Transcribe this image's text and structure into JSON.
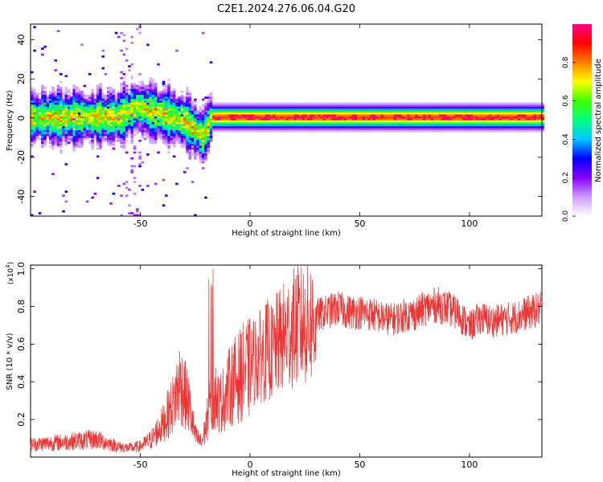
{
  "title": "C2E1.2024.276.06.04.G20",
  "chart_data": [
    {
      "type": "heatmap",
      "xlabel": "Height of straight line (km)",
      "ylabel": "Frequency (Hz)",
      "xlim": [
        -100,
        133
      ],
      "ylim": [
        -50,
        48
      ],
      "xticks": [
        -50,
        0,
        50,
        100
      ],
      "yticks": [
        -40,
        -20,
        0,
        20,
        40
      ],
      "colorbar": {
        "label": "Normalized spectral amplitude",
        "range": [
          0,
          1
        ],
        "ticks": [
          "0.0",
          "0.2",
          "0.4",
          "0.6",
          "0.8"
        ],
        "colors": [
          "#ffffff",
          "#cc99ff",
          "#8800ff",
          "#0000ff",
          "#00c8ff",
          "#00ff80",
          "#40ff00",
          "#ffff00",
          "#ff8000",
          "#ff0000",
          "#ff0088"
        ]
      },
      "description_features": {
        "central_frequency_hz": [
          [
            -100,
            0
          ],
          [
            -60,
            0
          ],
          [
            -52,
            5
          ],
          [
            -30,
            -2
          ],
          [
            -22,
            -10
          ],
          [
            -18,
            0
          ],
          [
            133,
            0
          ]
        ],
        "strong_band_x_range": [
          -18,
          133
        ]
      }
    },
    {
      "type": "line",
      "xlabel": "Height of straight line (km)",
      "ylabel": "SNR (10 * v/v)",
      "yscale_label": "(x10",
      "yscale_exponent": "4",
      "xlim": [
        -100,
        133
      ],
      "ylim": [
        0,
        1.02
      ],
      "xticks": [
        -50,
        0,
        50,
        100
      ],
      "yticks": [
        0.2,
        0.4,
        0.6,
        0.8,
        1.0
      ],
      "series": [
        {
          "color": "#ee3333",
          "x": [
            -100,
            -90,
            -80,
            -70,
            -60,
            -55,
            -50,
            -45,
            -40,
            -35,
            -32,
            -28,
            -25,
            -22,
            -20,
            -18,
            -16,
            -14,
            -12,
            -10,
            -8,
            -5,
            -3,
            0,
            3,
            5,
            8,
            10,
            13,
            15,
            18,
            20,
            25,
            30,
            35,
            40,
            45,
            50,
            55,
            60,
            65,
            70,
            75,
            80,
            85,
            90,
            95,
            100,
            105,
            110,
            115,
            120,
            125,
            133
          ],
          "values": [
            0.07,
            0.08,
            0.09,
            0.1,
            0.06,
            0.05,
            0.06,
            0.1,
            0.18,
            0.3,
            0.42,
            0.3,
            0.12,
            0.08,
            0.18,
            0.3,
            0.35,
            0.3,
            0.33,
            0.38,
            0.42,
            0.45,
            0.48,
            0.5,
            0.55,
            0.56,
            0.6,
            0.58,
            0.64,
            0.66,
            0.7,
            0.72,
            0.74,
            0.76,
            0.78,
            0.8,
            0.78,
            0.78,
            0.77,
            0.75,
            0.74,
            0.76,
            0.77,
            0.8,
            0.82,
            0.8,
            0.77,
            0.7,
            0.75,
            0.73,
            0.74,
            0.75,
            0.77,
            0.8
          ]
        }
      ]
    }
  ]
}
